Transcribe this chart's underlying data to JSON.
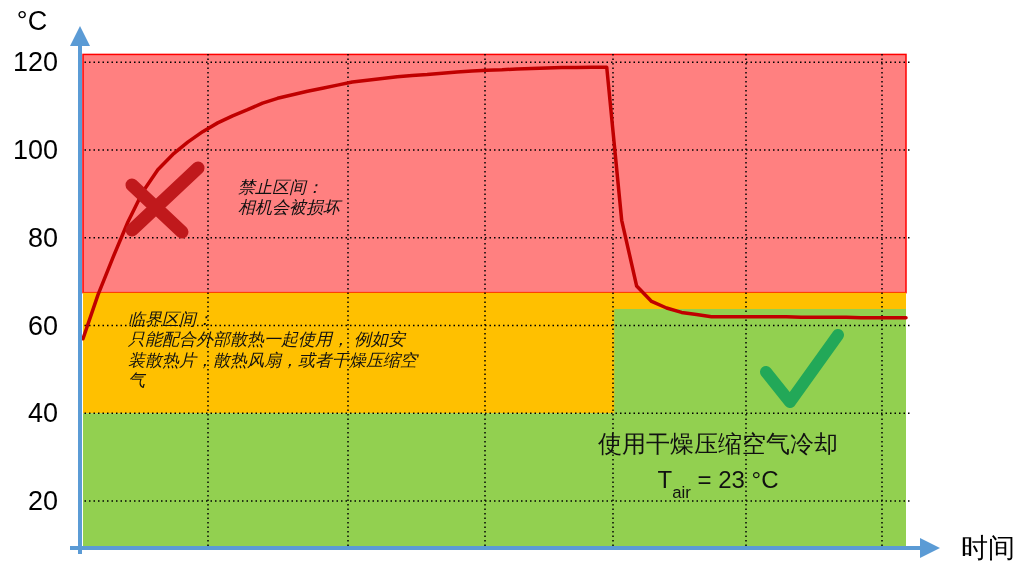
{
  "chart_data": {
    "type": "line",
    "ylabel": "°C",
    "xlabel": "时间",
    "categories": [
      null,
      null,
      null,
      null,
      null,
      null,
      null,
      null,
      null,
      null,
      null,
      null,
      null,
      null,
      null,
      null,
      null,
      null,
      null,
      null,
      null,
      null,
      null,
      null,
      null,
      null,
      null,
      null,
      null,
      null,
      null,
      null,
      null,
      null,
      null,
      null,
      null,
      null,
      null,
      null,
      null,
      null,
      null,
      null,
      null,
      null,
      null,
      null,
      null,
      null,
      null,
      null,
      null,
      null,
      null,
      null
    ],
    "ylim": [
      9.3,
      126
    ],
    "yticks": [
      20,
      40,
      60,
      80,
      100,
      120
    ],
    "grid": true,
    "bands": [
      {
        "axis": "y",
        "from": 67.5,
        "to": 121.8,
        "color": "#ff8080"
      },
      {
        "axis": "y",
        "from": 40,
        "to": 67.5,
        "color": "#ffc000"
      }
    ],
    "series": [
      {
        "type": "area",
        "color": "#92d050",
        "values": [
          40,
          40,
          40,
          40,
          40,
          40,
          40,
          40,
          40,
          40,
          40,
          40,
          40,
          40,
          40,
          40,
          40,
          40,
          40,
          40,
          40,
          40,
          40,
          40,
          40,
          40,
          40,
          40,
          40,
          40,
          40,
          40,
          40,
          40,
          40,
          40,
          63.8,
          63.8,
          63.8,
          63.8,
          63.8,
          63.8,
          63.8,
          63.8,
          63.8,
          63.8,
          63.8,
          63.8,
          63.8,
          63.8,
          63.8,
          63.8,
          63.8,
          63.8,
          63.8,
          63.8
        ]
      },
      {
        "type": "line",
        "color": "#c00000",
        "values": [
          57,
          67,
          75.5,
          83.6,
          90.5,
          95.5,
          99,
          101.8,
          104.2,
          106.2,
          107.8,
          109.2,
          110.7,
          111.8,
          112.6,
          113.4,
          114.1,
          114.8,
          115.5,
          115.9,
          116.3,
          116.7,
          117,
          117.2,
          117.5,
          117.8,
          118,
          118.2,
          118.3,
          118.5,
          118.6,
          118.7,
          118.8,
          118.8,
          118.9,
          118.9,
          84,
          69,
          65.5,
          64,
          63,
          62.5,
          62,
          62,
          62,
          62,
          62,
          62,
          61.9,
          61.9,
          61.9,
          61.9,
          61.8,
          61.8,
          61.8,
          61.8
        ]
      }
    ],
    "annotations": [
      "禁止区间：相机会被损坏",
      "临界区间：只能配合外部散热一起使用， 例如安装散热片，散热风扇，或者干燥压缩空气",
      "使用干燥压缩空气冷却",
      "T$_{air}$ = 23 °C"
    ]
  }
}
